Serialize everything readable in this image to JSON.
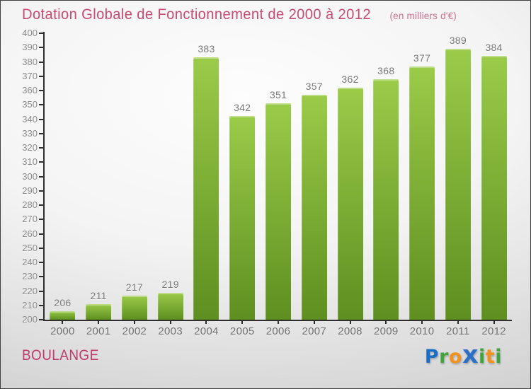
{
  "title": "Dotation Globale de Fonctionnement de 2000 à 2012",
  "subtitle": "(en milliers d'€)",
  "footer": {
    "commune": "BOULANGE",
    "logo_text": "Proxiti"
  },
  "logo_letters": [
    {
      "ch": "P",
      "color": "#1d6fc5",
      "big": false
    },
    {
      "ch": "r",
      "color": "#3fa43b",
      "big": false
    },
    {
      "ch": "o",
      "color": "#f1911f",
      "big": false
    },
    {
      "ch": "x",
      "color": "#2d6fc5",
      "big": true
    },
    {
      "ch": "i",
      "color": "#3fa43b",
      "big": false
    },
    {
      "ch": "t",
      "color": "#f1911f",
      "big": false
    },
    {
      "ch": "i",
      "color": "#3fa43b",
      "big": false
    }
  ],
  "colors": {
    "title": "#c94a72",
    "subtitle": "#d0718f",
    "commune": "#bf3a6b",
    "bar_top": "#9acb49",
    "bar_bottom": "#5e8f20",
    "axis": "#2e2e2e",
    "tick_label": "#8a8a8a",
    "value_label": "#787878",
    "year_label": "#6f6f6f"
  },
  "chart_data": {
    "type": "bar",
    "categories": [
      "2000",
      "2001",
      "2002",
      "2003",
      "2004",
      "2005",
      "2006",
      "2007",
      "2008",
      "2009",
      "2010",
      "2011",
      "2012"
    ],
    "values": [
      206,
      211,
      217,
      219,
      383,
      342,
      351,
      357,
      362,
      368,
      377,
      389,
      384
    ],
    "title": "Dotation Globale de Fonctionnement de 2000 à 2012",
    "xlabel": "",
    "ylabel": "",
    "ylim": [
      200,
      400
    ],
    "ytick_step": 10,
    "grid": false,
    "legend": false,
    "bar_labels": true
  }
}
